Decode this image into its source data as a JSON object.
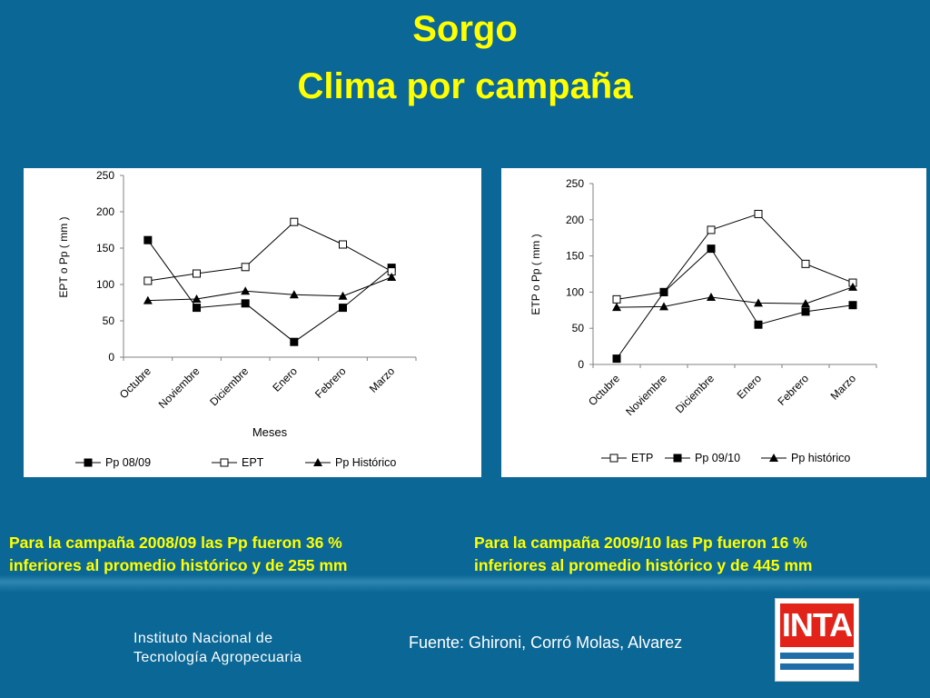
{
  "slide": {
    "title_line1": "Sorgo",
    "title_line2": "Clima por campaña",
    "caption_left_line1": "Para la campaña 2008/09 las Pp fueron 36 %",
    "caption_left_line2": "inferiores al promedio histórico y de 255 mm",
    "caption_right_line1": "Para la campaña 2009/10 las Pp fueron 16 %",
    "caption_right_line2": "inferiores al promedio histórico y de  445 mm",
    "institution_line1": "Instituto Nacional de",
    "institution_line2": "Tecnología Agropecuaria",
    "source": "Fuente: Ghironi, Corró Molas, Alvarez",
    "logo_text": "INTA",
    "colors": {
      "background": "#0a6796",
      "title": "#ffff00",
      "logo_red": "#e2231a",
      "logo_blue": "#1f6ea9"
    }
  },
  "chart_data": [
    {
      "type": "line",
      "categories": [
        "Octubre",
        "Noviembre",
        "Diciembre",
        "Enero",
        "Febrero",
        "Marzo"
      ],
      "xlabel": "Meses",
      "ylabel": "EPT o Pp ( mm )",
      "ylim": [
        0,
        250
      ],
      "yticks": [
        0,
        50,
        100,
        150,
        200,
        250
      ],
      "grid": false,
      "legend_position": "bottom",
      "series": [
        {
          "name": "Pp 08/09",
          "marker": "filled-square",
          "values": [
            161,
            68,
            74,
            21,
            68,
            123
          ]
        },
        {
          "name": "EPT",
          "marker": "open-square",
          "values": [
            105,
            115,
            124,
            186,
            155,
            118
          ]
        },
        {
          "name": "Pp Histórico",
          "marker": "filled-triangle",
          "values": [
            78,
            80,
            91,
            86,
            84,
            110
          ]
        }
      ]
    },
    {
      "type": "line",
      "categories": [
        "Octubre",
        "Noviembre",
        "Diciembre",
        "Enero",
        "Febrero",
        "Marzo"
      ],
      "xlabel": "",
      "ylabel": "ETP o Pp ( mm )",
      "ylim": [
        0,
        250
      ],
      "yticks": [
        0,
        50,
        100,
        150,
        200,
        250
      ],
      "grid": false,
      "legend_position": "bottom",
      "series": [
        {
          "name": "ETP",
          "marker": "open-square",
          "values": [
            90,
            100,
            186,
            208,
            139,
            113
          ]
        },
        {
          "name": "Pp 09/10",
          "marker": "filled-square",
          "values": [
            8,
            100,
            160,
            55,
            73,
            82
          ]
        },
        {
          "name": "Pp histórico",
          "marker": "filled-triangle",
          "values": [
            79,
            80,
            93,
            85,
            84,
            107
          ]
        }
      ]
    }
  ]
}
